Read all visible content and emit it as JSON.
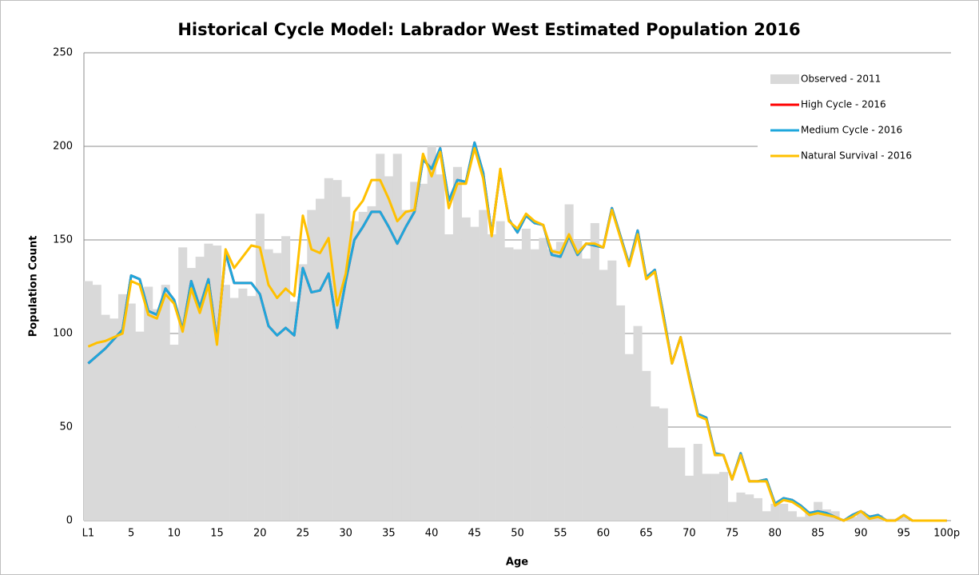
{
  "chart_data": {
    "type": "combo",
    "title": "Historical Cycle Model: Labrador West Estimated Population 2016",
    "x_label": "Age",
    "y_label": "Population Count",
    "categories": [
      "L1",
      null,
      null,
      null,
      null,
      "5",
      null,
      null,
      null,
      null,
      "10",
      null,
      null,
      null,
      null,
      "15",
      null,
      null,
      null,
      null,
      "20",
      null,
      null,
      null,
      null,
      "25",
      null,
      null,
      null,
      null,
      "30",
      null,
      null,
      null,
      null,
      "35",
      null,
      null,
      null,
      null,
      "40",
      null,
      null,
      null,
      null,
      "45",
      null,
      null,
      null,
      null,
      "50",
      null,
      null,
      null,
      null,
      "55",
      null,
      null,
      null,
      null,
      "60",
      null,
      null,
      null,
      null,
      "65",
      null,
      null,
      null,
      null,
      "70",
      null,
      null,
      null,
      null,
      "75",
      null,
      null,
      null,
      null,
      "80",
      null,
      null,
      null,
      null,
      "85",
      null,
      null,
      null,
      null,
      "90",
      null,
      null,
      null,
      null,
      "95",
      null,
      null,
      null,
      null,
      "100p"
    ],
    "ylim": [
      0,
      250
    ],
    "yticks": [
      0,
      50,
      100,
      150,
      200,
      250
    ],
    "grid": true,
    "legend": "upper right",
    "series": [
      {
        "name": "Observed - 2011",
        "type": "bar",
        "color": "#d9d9d9",
        "values": [
          128,
          126,
          110,
          108,
          121,
          116,
          101,
          125,
          113,
          126,
          94,
          146,
          135,
          141,
          148,
          147,
          126,
          119,
          124,
          120,
          164,
          145,
          143,
          152,
          117,
          137,
          166,
          172,
          183,
          182,
          173,
          160,
          165,
          168,
          196,
          184,
          196,
          166,
          181,
          180,
          200,
          185,
          153,
          189,
          162,
          157,
          166,
          153,
          160,
          146,
          145,
          156,
          145,
          151,
          145,
          149,
          169,
          150,
          140,
          159,
          134,
          139,
          115,
          89,
          104,
          80,
          61,
          60,
          39,
          39,
          24,
          41,
          25,
          25,
          26,
          10,
          15,
          14,
          12,
          5,
          9,
          9,
          5,
          2,
          5,
          10,
          6,
          5,
          1,
          2,
          5,
          3,
          3,
          1,
          1,
          2,
          0,
          0,
          0,
          0,
          0
        ]
      },
      {
        "name": "High Cycle - 2016",
        "type": "line",
        "color": "#ff0000",
        "values": [
          84,
          88,
          92,
          97,
          102,
          131,
          129,
          112,
          110,
          124,
          118,
          102,
          128,
          114,
          129,
          96,
          143,
          127,
          127,
          127,
          121,
          104,
          99,
          103,
          99,
          135,
          122,
          123,
          132,
          103,
          128,
          150,
          157,
          165,
          165,
          157,
          148,
          157,
          165,
          193,
          188,
          199,
          171,
          182,
          181,
          202,
          186,
          153,
          187,
          161,
          154,
          163,
          159,
          158,
          142,
          141,
          152,
          142,
          148,
          147,
          146,
          167,
          152,
          137,
          155,
          130,
          134,
          110,
          84,
          98,
          77,
          57,
          55,
          36,
          35,
          22,
          36,
          21,
          21,
          22,
          9,
          12,
          11,
          8,
          4,
          5,
          4,
          2,
          0,
          3,
          5,
          2,
          3,
          0,
          0,
          3,
          0,
          0,
          0,
          0,
          0
        ]
      },
      {
        "name": "Medium Cycle - 2016",
        "type": "line",
        "color": "#1ea7dc",
        "values": [
          84,
          88,
          92,
          97,
          102,
          131,
          129,
          112,
          110,
          124,
          118,
          102,
          128,
          114,
          129,
          96,
          143,
          127,
          127,
          127,
          121,
          104,
          99,
          103,
          99,
          135,
          122,
          123,
          132,
          103,
          128,
          150,
          157,
          165,
          165,
          157,
          148,
          157,
          165,
          193,
          188,
          199,
          171,
          182,
          181,
          202,
          186,
          153,
          187,
          161,
          154,
          163,
          159,
          158,
          142,
          141,
          152,
          142,
          148,
          147,
          146,
          167,
          152,
          137,
          155,
          130,
          134,
          110,
          84,
          98,
          77,
          57,
          55,
          36,
          35,
          22,
          36,
          21,
          21,
          22,
          9,
          12,
          11,
          8,
          4,
          5,
          4,
          2,
          0,
          3,
          5,
          2,
          3,
          0,
          0,
          3,
          0,
          0,
          0,
          0,
          0
        ]
      },
      {
        "name": "Natural Survival - 2016",
        "type": "line",
        "color": "#ffc000",
        "values": [
          93,
          95,
          96,
          98,
          100,
          128,
          126,
          110,
          108,
          121,
          116,
          101,
          124,
          111,
          126,
          94,
          145,
          135,
          141,
          147,
          146,
          126,
          119,
          124,
          120,
          163,
          145,
          143,
          151,
          115,
          132,
          165,
          171,
          182,
          182,
          172,
          160,
          165,
          166,
          196,
          184,
          197,
          167,
          180,
          180,
          199,
          183,
          152,
          188,
          160,
          156,
          164,
          160,
          158,
          144,
          143,
          153,
          143,
          148,
          148,
          146,
          166,
          151,
          136,
          153,
          129,
          133,
          108,
          84,
          98,
          76,
          56,
          54,
          35,
          35,
          22,
          35,
          21,
          21,
          21,
          8,
          11,
          10,
          7,
          3,
          4,
          3,
          2,
          0,
          2,
          5,
          1,
          2,
          0,
          0,
          3,
          0,
          0,
          0,
          0,
          0
        ]
      }
    ]
  }
}
